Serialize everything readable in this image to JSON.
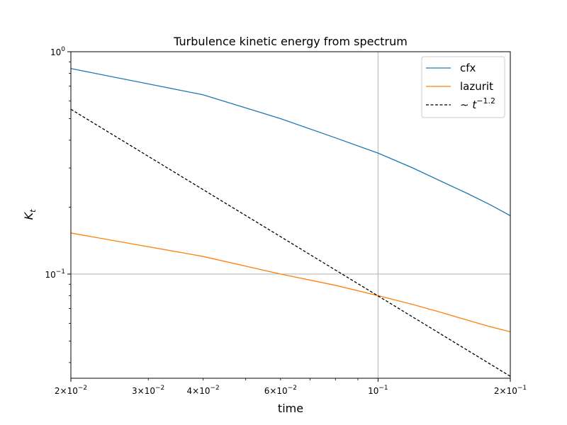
{
  "chart_data": {
    "type": "line",
    "title": "Turbulence kinetic energy from spectrum",
    "xlabel": "time",
    "ylabel": "K_t",
    "x_scale": "log",
    "y_scale": "log",
    "xlim": [
      0.02,
      0.2
    ],
    "ylim": [
      0.034,
      1.0
    ],
    "grid": {
      "x_major": [
        0.1
      ],
      "y_major": [
        0.1
      ],
      "color": "#b0b0b0"
    },
    "legend_position": "upper right",
    "x_major_ticks": [
      {
        "value": 0.02,
        "base": "2×10",
        "exp": "−2"
      },
      {
        "value": 0.1,
        "base": "10",
        "exp": "−1"
      },
      {
        "value": 0.2,
        "base": "2×10",
        "exp": "−1"
      }
    ],
    "x_minor_ticks": [
      {
        "value": 0.03,
        "base": "3×10",
        "exp": "−2"
      },
      {
        "value": 0.04,
        "base": "4×10",
        "exp": "−2"
      },
      {
        "value": 0.06,
        "base": "6×10",
        "exp": "−2"
      }
    ],
    "x_minor_unlabeled": [
      0.05,
      0.07,
      0.08,
      0.09
    ],
    "y_major_ticks": [
      {
        "value": 1.0,
        "base": "10",
        "exp": "0"
      },
      {
        "value": 0.1,
        "base": "10",
        "exp": "−1"
      }
    ],
    "y_minor_unlabeled": [
      0.04,
      0.05,
      0.06,
      0.07,
      0.08,
      0.09,
      0.2,
      0.3,
      0.4,
      0.5,
      0.6,
      0.7,
      0.8,
      0.9
    ],
    "series": [
      {
        "name": "cfx",
        "color": "#1f77b4",
        "dash": "solid",
        "x": [
          0.02,
          0.04,
          0.06,
          0.08,
          0.1,
          0.12,
          0.14,
          0.16,
          0.18,
          0.2
        ],
        "y": [
          0.84,
          0.64,
          0.5,
          0.41,
          0.35,
          0.3,
          0.26,
          0.23,
          0.205,
          0.183
        ]
      },
      {
        "name": "lazurit",
        "color": "#ff7f0e",
        "dash": "solid",
        "x": [
          0.02,
          0.04,
          0.06,
          0.08,
          0.1,
          0.12,
          0.14,
          0.16,
          0.18,
          0.2
        ],
        "y": [
          0.153,
          0.12,
          0.1,
          0.089,
          0.08,
          0.073,
          0.067,
          0.062,
          0.058,
          0.055
        ]
      },
      {
        "name": "~t^-1.2",
        "legend_prefix": "∼",
        "legend_base": "t",
        "legend_exp": "−1.2",
        "color": "#000000",
        "dash": "dashed",
        "x": [
          0.02,
          0.2
        ],
        "y": [
          0.551,
          0.0347
        ]
      }
    ]
  }
}
